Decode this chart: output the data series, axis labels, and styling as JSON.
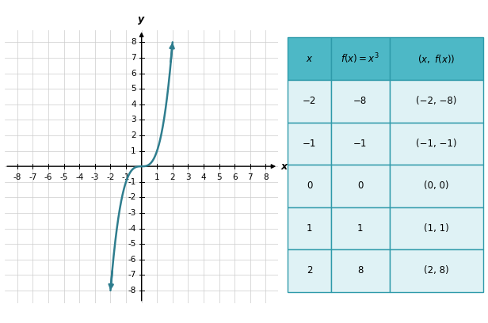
{
  "xlim": [
    -8.8,
    8.8
  ],
  "ylim": [
    -8.8,
    8.8
  ],
  "xticks": [
    -8,
    -7,
    -6,
    -5,
    -4,
    -3,
    -2,
    -1,
    1,
    2,
    3,
    4,
    5,
    6,
    7,
    8
  ],
  "yticks": [
    -8,
    -7,
    -6,
    -5,
    -4,
    -3,
    -2,
    -1,
    1,
    2,
    3,
    4,
    5,
    6,
    7,
    8
  ],
  "xlabel": "x",
  "ylabel": "y",
  "curve_color": "#2e7d8e",
  "table_header_bg": "#4db8c6",
  "table_row_bg": "#dff2f5",
  "table_border_color": "#2e9aaa",
  "grid_color": "#cccccc",
  "tick_fontsize": 7.5,
  "table_rows": [
    [
      "−2",
      "−8",
      "(−2, −8)"
    ],
    [
      "−1",
      "−1",
      "(−1, −1)"
    ],
    [
      "0",
      "0",
      "(0, 0)"
    ],
    [
      "1",
      "1",
      "(1, 1)"
    ],
    [
      "2",
      "8",
      "(2, 8)"
    ]
  ]
}
